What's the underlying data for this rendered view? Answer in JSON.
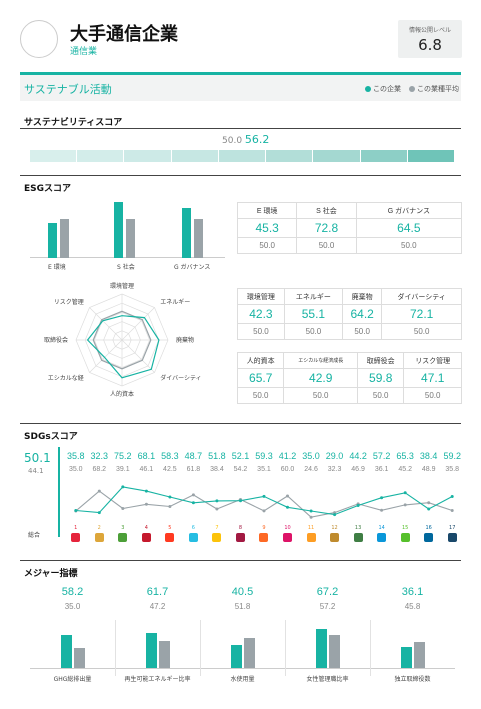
{
  "header": {
    "company": "大手通信企業",
    "industry": "通信業",
    "level_label": "情報公開レベル",
    "level_value": "6.8"
  },
  "section": {
    "title": "サステナブル活動",
    "legend_company": "この企業",
    "legend_industry": "この業種平均"
  },
  "colors": {
    "teal": "#17b3a3",
    "gray": "#9aa3a8"
  },
  "sustainability": {
    "title": "サステナビリティスコア",
    "industry_value": "50.0",
    "company_value": "56.2",
    "score": 56.2
  },
  "esg": {
    "title": "ESGスコア",
    "bars": [
      {
        "label": "E 環境",
        "company": 45.3,
        "industry": 50.0
      },
      {
        "label": "S 社会",
        "company": 72.8,
        "industry": 50.0
      },
      {
        "label": "G ガバナンス",
        "company": 64.5,
        "industry": 50.0
      }
    ],
    "table": {
      "headers": [
        "E 環境",
        "S 社会",
        "G ガバナンス"
      ],
      "values": [
        "45.3",
        "72.8",
        "64.5"
      ],
      "avg": [
        "50.0",
        "50.0",
        "50.0"
      ]
    }
  },
  "radar": {
    "labels": [
      "環境管理",
      "エネルギー",
      "廃棄物",
      "ダイバーシティ",
      "人的資本",
      "エシカルな経",
      "取締役会",
      "リスク管理"
    ],
    "company": [
      42.3,
      55.1,
      64.2,
      72.1,
      65.7,
      42.9,
      59.8,
      47.1
    ],
    "industry": [
      50,
      50,
      50,
      50,
      50,
      50,
      50,
      50
    ]
  },
  "table_e": {
    "headers": [
      "環境管理",
      "エネルギー",
      "廃棄物",
      "ダイバーシティ"
    ],
    "values": [
      "42.3",
      "55.1",
      "64.2",
      "72.1"
    ],
    "avg": [
      "50.0",
      "50.0",
      "50.0",
      "50.0"
    ]
  },
  "table_s": {
    "headers": [
      "人的資本",
      "エシカルな経済成長",
      "取締役会",
      "リスク管理"
    ],
    "values": [
      "65.7",
      "42.9",
      "59.8",
      "47.1"
    ],
    "avg": [
      "50.0",
      "50.0",
      "50.0",
      "50.0"
    ]
  },
  "sdgs": {
    "title": "SDGsスコア",
    "total_label": "総合",
    "total_company": "50.1",
    "total_industry": "44.1",
    "company": [
      "35.8",
      "32.3",
      "75.2",
      "68.1",
      "58.3",
      "48.7",
      "51.8",
      "52.1",
      "59.3",
      "41.2",
      "35.0",
      "29.0",
      "44.2",
      "57.2",
      "65.3",
      "38.4",
      "59.2"
    ],
    "industry": [
      "35.0",
      "68.2",
      "39.1",
      "46.1",
      "42.5",
      "61.8",
      "38.4",
      "54.2",
      "35.1",
      "60.0",
      "24.6",
      "32.3",
      "46.9",
      "36.1",
      "45.2",
      "48.9",
      "35.8"
    ],
    "goal_numbers": [
      "1",
      "2",
      "3",
      "4",
      "5",
      "6",
      "7",
      "8",
      "9",
      "10",
      "11",
      "12",
      "13",
      "14",
      "15",
      "16",
      "17"
    ],
    "goal_colors": [
      "#e5243b",
      "#dda63a",
      "#4c9f38",
      "#c5192d",
      "#ff3a21",
      "#26bde2",
      "#fcc30b",
      "#a21942",
      "#fd6925",
      "#dd1367",
      "#fd9d24",
      "#bf8b2e",
      "#3f7e44",
      "#0a97d9",
      "#56c02b",
      "#00689d",
      "#19486a"
    ]
  },
  "major": {
    "title": "メジャー指標",
    "items": [
      {
        "label": "GHG総排出量",
        "company": "58.2",
        "industry": "35.0"
      },
      {
        "label": "再生可能エネルギー比率",
        "company": "61.7",
        "industry": "47.2"
      },
      {
        "label": "水使用量",
        "company": "40.5",
        "industry": "51.8"
      },
      {
        "label": "女性管理職比率",
        "company": "67.2",
        "industry": "57.2"
      },
      {
        "label": "独立取締役数",
        "company": "36.1",
        "industry": "45.8"
      }
    ]
  }
}
